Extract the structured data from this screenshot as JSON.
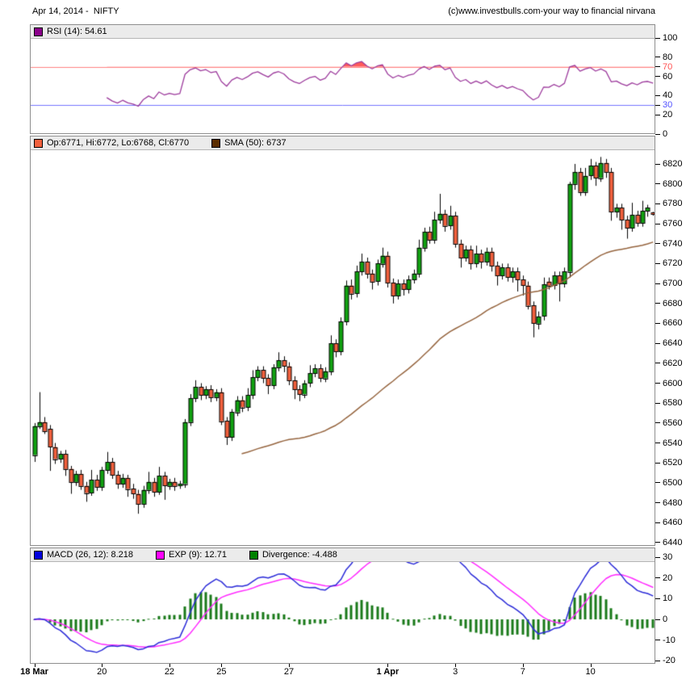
{
  "header": {
    "title": "Apr 14, 2014 -  NIFTY",
    "copyright": "(c)www.investbulls.com-your way to financial nirvana"
  },
  "rsi_panel": {
    "legend": {
      "label": "RSI (14): 54.61",
      "swatch_color": "#8b008b"
    },
    "line_color": "#9c3a9c",
    "overbought_line_color": "#ff8080",
    "oversold_line_color": "#7373ff",
    "overbought_fill": "#ff5a5a",
    "oversold_fill": "#6a6aff",
    "yticks": [
      {
        "v": 100,
        "label": "100",
        "color": "#000000"
      },
      {
        "v": 80,
        "label": "80",
        "color": "#000000"
      },
      {
        "v": 70,
        "label": "70",
        "color": "#ff5050"
      },
      {
        "v": 60,
        "label": "60",
        "color": "#000000"
      },
      {
        "v": 40,
        "label": "40",
        "color": "#000000"
      },
      {
        "v": 30,
        "label": "30",
        "color": "#5050ff"
      },
      {
        "v": 20,
        "label": "20",
        "color": "#000000"
      },
      {
        "v": 0,
        "label": "0",
        "color": "#000000"
      }
    ]
  },
  "price_panel": {
    "legend": [
      {
        "label": "Op:6771, Hi:6772, Lo:6768, Cl:6770",
        "swatch_color": "#f2603d"
      },
      {
        "label": "SMA (50): 6737",
        "swatch_color": "#5c2e00"
      }
    ],
    "up_color": "#12a312",
    "down_color": "#f2603d",
    "sma_color": "#95643e",
    "ytick_min": 6440,
    "ytick_max": 6820,
    "ytick_step": 20
  },
  "macd_panel": {
    "legend": [
      {
        "label": "MACD (26, 12): 8.218",
        "swatch_color": "#0000dd"
      },
      {
        "label": "EXP (9): 12.71",
        "swatch_color": "#ff00ff"
      },
      {
        "label": "Divergence: -4.488",
        "swatch_color": "#008000"
      }
    ],
    "macd_color": "#2c2cd8",
    "signal_color": "#ff2bff",
    "hist_color": "#1a7a1a",
    "yticks": [
      30,
      20,
      10,
      0,
      -10,
      -20
    ]
  },
  "x_axis": {
    "labels": [
      {
        "text": "18 Mar",
        "index": 0,
        "bold": true
      },
      {
        "text": "20",
        "index": 13,
        "bold": false
      },
      {
        "text": "22",
        "index": 26,
        "bold": false
      },
      {
        "text": "25",
        "index": 36,
        "bold": false
      },
      {
        "text": "27",
        "index": 49,
        "bold": false
      },
      {
        "text": "1 Apr",
        "index": 68,
        "bold": true
      },
      {
        "text": "3",
        "index": 81,
        "bold": false
      },
      {
        "text": "7",
        "index": 94,
        "bold": false
      },
      {
        "text": "10",
        "index": 107,
        "bold": false
      }
    ]
  },
  "chart_data": {
    "type": "candlestick+indicators",
    "symbol": "NIFTY",
    "as_of": "Apr 14, 2014",
    "panels": [
      "RSI(14)",
      "price+SMA(50)",
      "MACD(26,12)+EXP(9)+Divergence"
    ],
    "price_ylim": [
      6437,
      6835
    ],
    "rsi_ylim": [
      0,
      100
    ],
    "macd_ylim": [
      -21,
      29
    ],
    "rsi_period": 14,
    "rsi_overbought": 70,
    "rsi_oversold": 30,
    "sma_period": 50,
    "sma_start_index": 40,
    "macd_params": [
      12,
      26,
      9
    ],
    "last_values": {
      "open": 6771,
      "high": 6772,
      "low": 6768,
      "close": 6770,
      "sma50": 6737,
      "rsi14": 54.61,
      "macd": 8.218,
      "exp9": 12.71,
      "divergence": -4.488
    },
    "candles_ohlc": [
      [
        6528,
        6560,
        6521,
        6557
      ],
      [
        6557,
        6591,
        6554,
        6561
      ],
      [
        6561,
        6566,
        6549,
        6552
      ],
      [
        6554,
        6558,
        6512,
        6536
      ],
      [
        6536,
        6540,
        6519,
        6524
      ],
      [
        6524,
        6532,
        6520,
        6529
      ],
      [
        6529,
        6533,
        6507,
        6514
      ],
      [
        6514,
        6517,
        6489,
        6501
      ],
      [
        6501,
        6512,
        6497,
        6509
      ],
      [
        6509,
        6513,
        6493,
        6497
      ],
      [
        6497,
        6501,
        6481,
        6490
      ],
      [
        6490,
        6513,
        6487,
        6503
      ],
      [
        6503,
        6508,
        6492,
        6496
      ],
      [
        6496,
        6516,
        6492,
        6513
      ],
      [
        6513,
        6531,
        6509,
        6521
      ],
      [
        6521,
        6525,
        6504,
        6508
      ],
      [
        6508,
        6512,
        6494,
        6499
      ],
      [
        6499,
        6509,
        6495,
        6505
      ],
      [
        6505,
        6508,
        6486,
        6494
      ],
      [
        6494,
        6499,
        6484,
        6489
      ],
      [
        6489,
        6493,
        6469,
        6479
      ],
      [
        6479,
        6497,
        6475,
        6493
      ],
      [
        6493,
        6511,
        6489,
        6501
      ],
      [
        6501,
        6505,
        6486,
        6491
      ],
      [
        6491,
        6516,
        6488,
        6507
      ],
      [
        6507,
        6511,
        6483,
        6497
      ],
      [
        6497,
        6504,
        6493,
        6501
      ],
      [
        6501,
        6505,
        6492,
        6497
      ],
      [
        6497,
        6502,
        6494,
        6499
      ],
      [
        6499,
        6564,
        6495,
        6561
      ],
      [
        6561,
        6589,
        6557,
        6585
      ],
      [
        6585,
        6603,
        6581,
        6596
      ],
      [
        6596,
        6600,
        6583,
        6588
      ],
      [
        6588,
        6597,
        6584,
        6594
      ],
      [
        6594,
        6598,
        6581,
        6586
      ],
      [
        6586,
        6594,
        6582,
        6591
      ],
      [
        6591,
        6595,
        6558,
        6562
      ],
      [
        6562,
        6566,
        6538,
        6546
      ],
      [
        6546,
        6574,
        6542,
        6571
      ],
      [
        6571,
        6587,
        6567,
        6583
      ],
      [
        6583,
        6587,
        6571,
        6576
      ],
      [
        6576,
        6595,
        6572,
        6588
      ],
      [
        6588,
        6613,
        6584,
        6606
      ],
      [
        6606,
        6617,
        6602,
        6613
      ],
      [
        6613,
        6617,
        6600,
        6605
      ],
      [
        6605,
        6609,
        6589,
        6598
      ],
      [
        6598,
        6619,
        6594,
        6616
      ],
      [
        6616,
        6631,
        6612,
        6623
      ],
      [
        6623,
        6627,
        6611,
        6617
      ],
      [
        6617,
        6621,
        6598,
        6603
      ],
      [
        6603,
        6607,
        6584,
        6594
      ],
      [
        6594,
        6598,
        6582,
        6589
      ],
      [
        6589,
        6603,
        6585,
        6600
      ],
      [
        6600,
        6618,
        6596,
        6610
      ],
      [
        6610,
        6619,
        6606,
        6615
      ],
      [
        6615,
        6619,
        6601,
        6605
      ],
      [
        6605,
        6616,
        6601,
        6612
      ],
      [
        6612,
        6648,
        6608,
        6640
      ],
      [
        6640,
        6644,
        6626,
        6632
      ],
      [
        6632,
        6666,
        6628,
        6662
      ],
      [
        6662,
        6703,
        6658,
        6698
      ],
      [
        6698,
        6704,
        6684,
        6690
      ],
      [
        6690,
        6718,
        6686,
        6712
      ],
      [
        6712,
        6730,
        6708,
        6722
      ],
      [
        6722,
        6726,
        6705,
        6710
      ],
      [
        6710,
        6714,
        6694,
        6702
      ],
      [
        6702,
        6724,
        6698,
        6720
      ],
      [
        6720,
        6736,
        6716,
        6728
      ],
      [
        6728,
        6732,
        6696,
        6701
      ],
      [
        6701,
        6705,
        6680,
        6688
      ],
      [
        6688,
        6704,
        6684,
        6700
      ],
      [
        6700,
        6704,
        6688,
        6694
      ],
      [
        6694,
        6708,
        6690,
        6704
      ],
      [
        6704,
        6714,
        6700,
        6710
      ],
      [
        6710,
        6744,
        6706,
        6736
      ],
      [
        6736,
        6756,
        6732,
        6752
      ],
      [
        6752,
        6757,
        6740,
        6744
      ],
      [
        6744,
        6772,
        6740,
        6764
      ],
      [
        6764,
        6790,
        6760,
        6770
      ],
      [
        6770,
        6774,
        6752,
        6758
      ],
      [
        6758,
        6778,
        6754,
        6768
      ],
      [
        6768,
        6772,
        6736,
        6740
      ],
      [
        6740,
        6744,
        6716,
        6726
      ],
      [
        6726,
        6738,
        6722,
        6734
      ],
      [
        6734,
        6738,
        6714,
        6720
      ],
      [
        6720,
        6738,
        6716,
        6730
      ],
      [
        6730,
        6734,
        6715,
        6722
      ],
      [
        6722,
        6736,
        6718,
        6732
      ],
      [
        6732,
        6736,
        6712,
        6718
      ],
      [
        6718,
        6722,
        6698,
        6708
      ],
      [
        6708,
        6720,
        6704,
        6716
      ],
      [
        6716,
        6720,
        6702,
        6706
      ],
      [
        6706,
        6716,
        6701,
        6712
      ],
      [
        6712,
        6716,
        6692,
        6704
      ],
      [
        6704,
        6708,
        6688,
        6698
      ],
      [
        6698,
        6702,
        6674,
        6678
      ],
      [
        6678,
        6682,
        6646,
        6660
      ],
      [
        6660,
        6672,
        6654,
        6667
      ],
      [
        6667,
        6706,
        6663,
        6699
      ],
      [
        6702,
        6706,
        6694,
        6698
      ],
      [
        6698,
        6712,
        6694,
        6708
      ],
      [
        6708,
        6712,
        6682,
        6700
      ],
      [
        6700,
        6716,
        6696,
        6712
      ],
      [
        6712,
        6802,
        6706,
        6800
      ],
      [
        6800,
        6820,
        6794,
        6812
      ],
      [
        6812,
        6816,
        6788,
        6792
      ],
      [
        6792,
        6816,
        6788,
        6808
      ],
      [
        6808,
        6825,
        6804,
        6818
      ],
      [
        6818,
        6822,
        6798,
        6806
      ],
      [
        6806,
        6827,
        6802,
        6821
      ],
      [
        6821,
        6825,
        6806,
        6812
      ],
      [
        6812,
        6816,
        6763,
        6772
      ],
      [
        6772,
        6780,
        6766,
        6776
      ],
      [
        6776,
        6780,
        6754,
        6764
      ],
      [
        6764,
        6768,
        6745,
        6756
      ],
      [
        6756,
        6781,
        6752,
        6769
      ],
      [
        6769,
        6773,
        6757,
        6761
      ],
      [
        6761,
        6783,
        6757,
        6773
      ],
      [
        6773,
        6779,
        6767,
        6776
      ],
      [
        6771,
        6772,
        6768,
        6770
      ]
    ]
  }
}
